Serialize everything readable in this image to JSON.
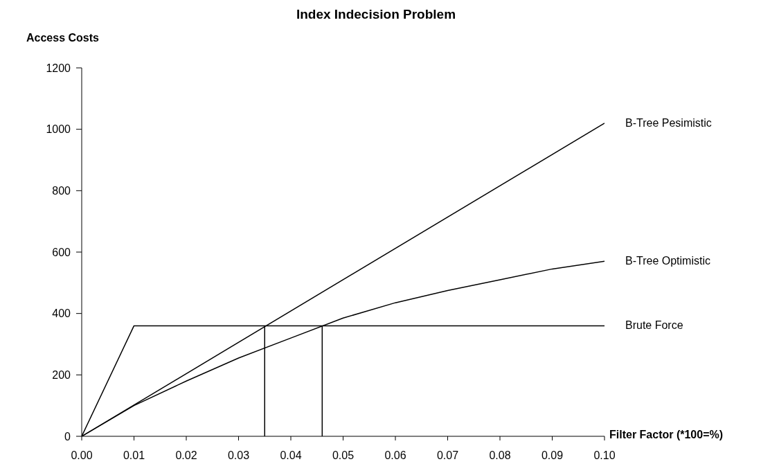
{
  "chart_data": {
    "type": "line",
    "title": "Index Indecision Problem",
    "xlabel": "Filter Factor (*100=%)",
    "ylabel": "Access Costs",
    "xlim": [
      0,
      0.1
    ],
    "xticks": [
      {
        "value": 0,
        "label": "0.00"
      },
      {
        "value": 0.01,
        "label": "0.01"
      },
      {
        "value": 0.02,
        "label": "0.02"
      },
      {
        "value": 0.03,
        "label": "0.03"
      },
      {
        "value": 0.04,
        "label": "0.04"
      },
      {
        "value": 0.05,
        "label": "0.05"
      },
      {
        "value": 0.06,
        "label": "0.06"
      },
      {
        "value": 0.07,
        "label": "0.07"
      },
      {
        "value": 0.08,
        "label": "0.08"
      },
      {
        "value": 0.09,
        "label": "0.09"
      },
      {
        "value": 0.1,
        "label": "0.10"
      }
    ],
    "ylim": [
      0,
      1200
    ],
    "yticks": [
      0,
      200,
      400,
      600,
      800,
      1000,
      1200
    ],
    "grid": false,
    "marker": "none",
    "line_style": "solid",
    "series": [
      {
        "name": "B-Tree Pesimistic",
        "color": "#000000",
        "x": [
          0,
          0.1
        ],
        "values": [
          0,
          1020
        ]
      },
      {
        "name": "B-Tree Optimistic",
        "color": "#000000",
        "x": [
          0,
          0.01,
          0.02,
          0.03,
          0.04,
          0.05,
          0.06,
          0.07,
          0.08,
          0.09,
          0.1
        ],
        "values": [
          0,
          100,
          180,
          255,
          320,
          385,
          435,
          475,
          510,
          545,
          570
        ]
      },
      {
        "name": "Brute Force",
        "color": "#000000",
        "x": [
          0,
          0.01,
          0.1
        ],
        "values": [
          0,
          360,
          360
        ]
      },
      {
        "color": "#000000",
        "x": [
          0.035,
          0.035
        ],
        "values": [
          0,
          360
        ]
      },
      {
        "color": "#000000",
        "x": [
          0.046,
          0.046
        ],
        "values": [
          0,
          360
        ]
      }
    ]
  }
}
